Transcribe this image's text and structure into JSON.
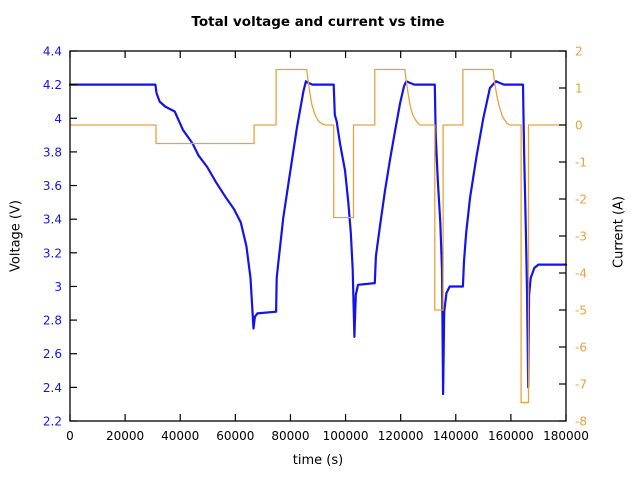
{
  "background": "#ffffff",
  "chart_data": {
    "type": "line",
    "title": "Total voltage and current vs time",
    "xlabel": "time (s)",
    "xlim": [
      0,
      180000
    ],
    "xticks": [
      0,
      20000,
      40000,
      60000,
      80000,
      100000,
      120000,
      140000,
      160000,
      180000
    ],
    "grid": false,
    "legend": null,
    "frame_color": "#000000",
    "axes": {
      "left": {
        "label": "Voltage (V)",
        "lim": [
          2.2,
          4.4
        ],
        "ticks": [
          4.4,
          4.2,
          4,
          3.8,
          3.6,
          3.4,
          3.2,
          3,
          2.8,
          2.6,
          2.4,
          2.2
        ],
        "color": "#1414e8"
      },
      "right": {
        "label": "Current (A)",
        "lim": [
          -8,
          2
        ],
        "ticks": [
          2,
          1,
          0,
          -1,
          -2,
          -3,
          -4,
          -5,
          -6,
          -7,
          -8
        ],
        "color": "#e8a33c"
      }
    },
    "series": [
      {
        "name": "voltage",
        "axis": "left",
        "color": "#1414e8",
        "width": 2.2,
        "points": [
          [
            0,
            4.2
          ],
          [
            31000,
            4.2
          ],
          [
            31400,
            4.15
          ],
          [
            32500,
            4.1
          ],
          [
            34500,
            4.07
          ],
          [
            38000,
            4.04
          ],
          [
            41000,
            3.93
          ],
          [
            44500,
            3.85
          ],
          [
            46600,
            3.78
          ],
          [
            49800,
            3.71
          ],
          [
            53000,
            3.62
          ],
          [
            56500,
            3.53
          ],
          [
            59500,
            3.46
          ],
          [
            62000,
            3.38
          ],
          [
            64000,
            3.24
          ],
          [
            65500,
            3.05
          ],
          [
            66600,
            2.75
          ],
          [
            67100,
            2.82
          ],
          [
            68000,
            2.84
          ],
          [
            74800,
            2.85
          ],
          [
            75000,
            3.05
          ],
          [
            75600,
            3.14
          ],
          [
            77400,
            3.41
          ],
          [
            79800,
            3.67
          ],
          [
            82300,
            3.94
          ],
          [
            84700,
            4.16
          ],
          [
            85600,
            4.22
          ],
          [
            86500,
            4.21
          ],
          [
            88000,
            4.2
          ],
          [
            95700,
            4.2
          ],
          [
            96100,
            4.02
          ],
          [
            96800,
            3.98
          ],
          [
            98000,
            3.85
          ],
          [
            99800,
            3.69
          ],
          [
            101000,
            3.5
          ],
          [
            101900,
            3.32
          ],
          [
            102600,
            3.1
          ],
          [
            103200,
            2.7
          ],
          [
            103700,
            2.95
          ],
          [
            104500,
            3.01
          ],
          [
            110600,
            3.02
          ],
          [
            111000,
            3.18
          ],
          [
            112500,
            3.36
          ],
          [
            114300,
            3.57
          ],
          [
            116100,
            3.75
          ],
          [
            117900,
            3.92
          ],
          [
            119800,
            4.09
          ],
          [
            121200,
            4.19
          ],
          [
            122000,
            4.22
          ],
          [
            123500,
            4.21
          ],
          [
            125000,
            4.2
          ],
          [
            132400,
            4.2
          ],
          [
            132700,
            3.9
          ],
          [
            133500,
            3.62
          ],
          [
            134400,
            3.38
          ],
          [
            135000,
            3.1
          ],
          [
            135400,
            2.36
          ],
          [
            135800,
            2.85
          ],
          [
            136600,
            2.96
          ],
          [
            137800,
            3.0
          ],
          [
            142600,
            3.0
          ],
          [
            143000,
            3.15
          ],
          [
            143800,
            3.32
          ],
          [
            145200,
            3.53
          ],
          [
            147600,
            3.78
          ],
          [
            150000,
            4.0
          ],
          [
            152400,
            4.18
          ],
          [
            154600,
            4.22
          ],
          [
            156000,
            4.21
          ],
          [
            157500,
            4.2
          ],
          [
            164400,
            4.2
          ],
          [
            164800,
            3.8
          ],
          [
            165400,
            3.35
          ],
          [
            165900,
            2.95
          ],
          [
            166300,
            2.4
          ],
          [
            166600,
            2.95
          ],
          [
            167200,
            3.05
          ],
          [
            168500,
            3.11
          ],
          [
            170000,
            3.13
          ],
          [
            180000,
            3.13
          ]
        ]
      },
      {
        "name": "current",
        "axis": "right",
        "color": "#e8a33c",
        "width": 1.3,
        "points": [
          [
            0,
            0
          ],
          [
            31200,
            0
          ],
          [
            31200,
            -0.5
          ],
          [
            66800,
            -0.5
          ],
          [
            66800,
            0
          ],
          [
            74800,
            0
          ],
          [
            74800,
            1.5
          ],
          [
            85900,
            1.5
          ],
          [
            86400,
            1.2
          ],
          [
            87000,
            0.9
          ],
          [
            87800,
            0.55
          ],
          [
            88800,
            0.3
          ],
          [
            90000,
            0.12
          ],
          [
            91500,
            0.03
          ],
          [
            92500,
            0
          ],
          [
            95700,
            0
          ],
          [
            95700,
            -2.5
          ],
          [
            102900,
            -2.5
          ],
          [
            102900,
            0
          ],
          [
            110600,
            0
          ],
          [
            110600,
            1.5
          ],
          [
            121500,
            1.5
          ],
          [
            122000,
            1.2
          ],
          [
            122700,
            0.85
          ],
          [
            123500,
            0.5
          ],
          [
            124500,
            0.25
          ],
          [
            125900,
            0.08
          ],
          [
            127000,
            0
          ],
          [
            132400,
            0
          ],
          [
            132400,
            -5
          ],
          [
            135400,
            -5
          ],
          [
            135400,
            0
          ],
          [
            142600,
            0
          ],
          [
            142600,
            1.5
          ],
          [
            153500,
            1.5
          ],
          [
            154100,
            1.15
          ],
          [
            154900,
            0.8
          ],
          [
            155800,
            0.5
          ],
          [
            157000,
            0.22
          ],
          [
            158500,
            0.05
          ],
          [
            159500,
            0
          ],
          [
            163700,
            0
          ],
          [
            163700,
            -7.5
          ],
          [
            166400,
            -7.5
          ],
          [
            166400,
            0
          ],
          [
            180000,
            0
          ]
        ]
      }
    ]
  }
}
